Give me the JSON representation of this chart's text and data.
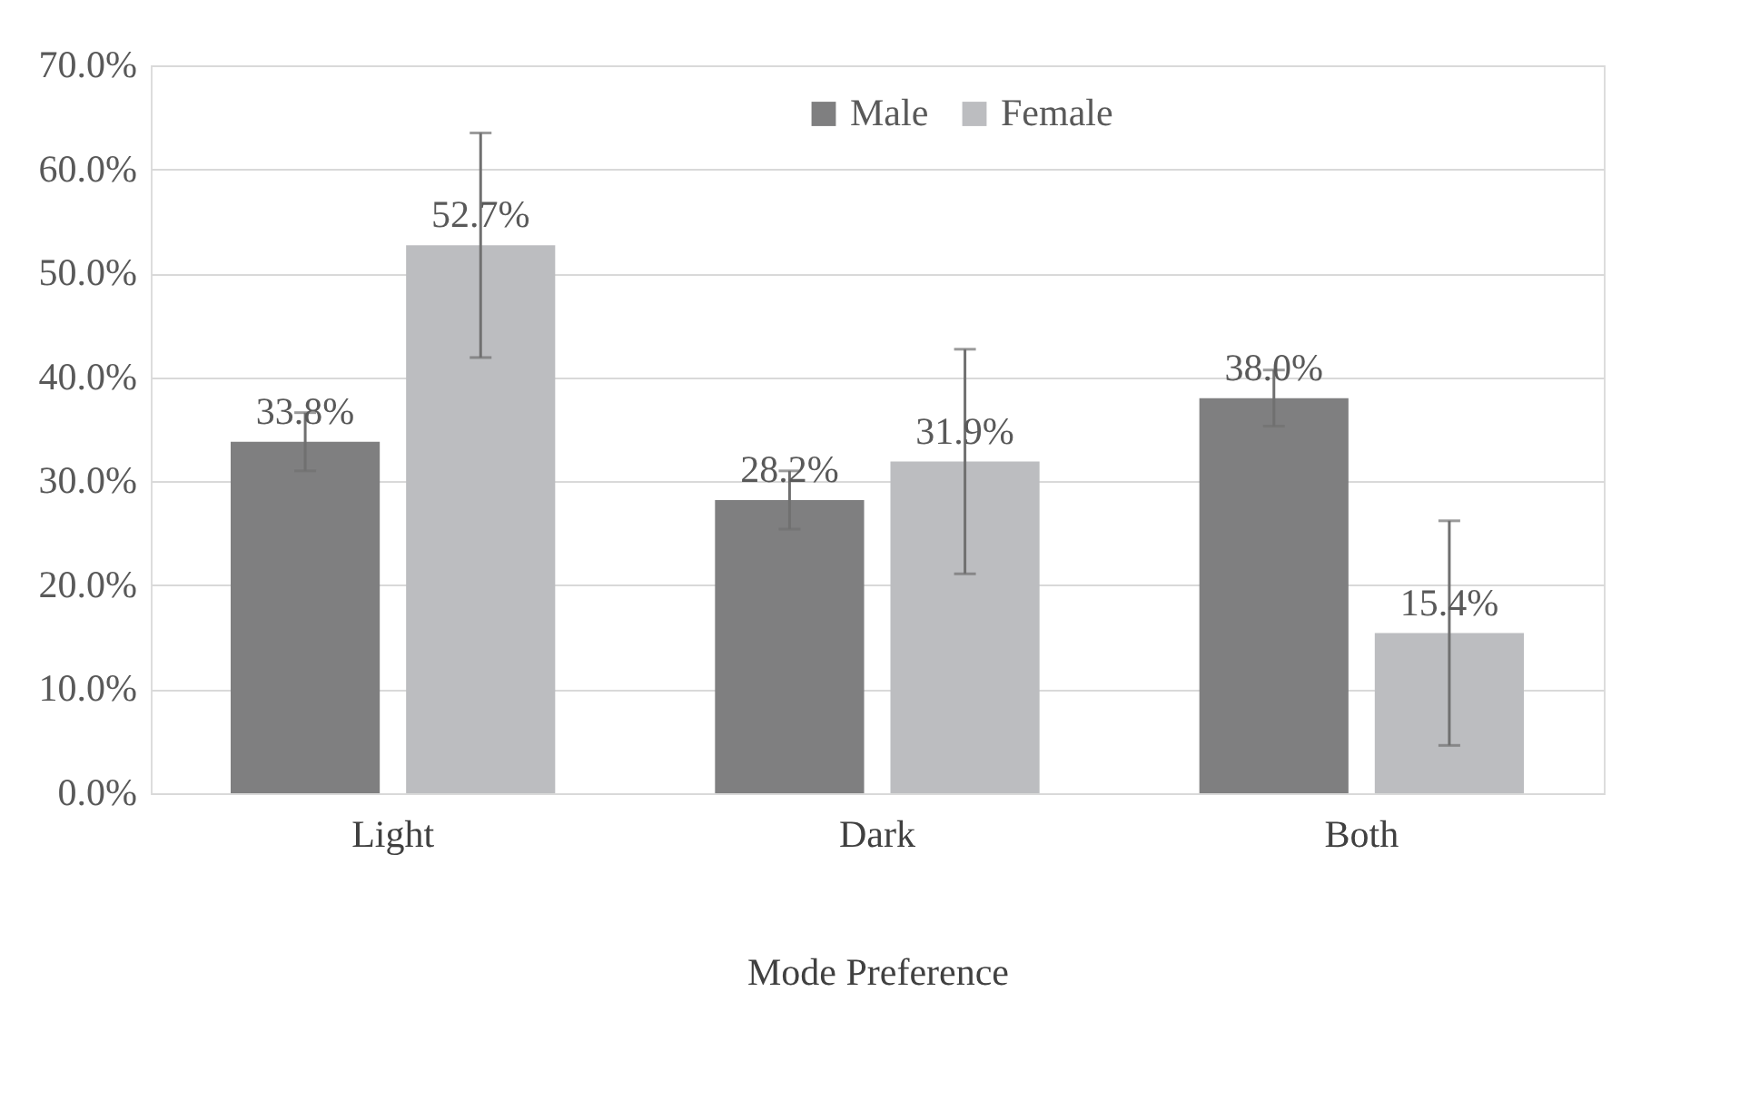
{
  "chart_data": {
    "type": "bar",
    "xlabel": "Mode Preference",
    "categories": [
      "Light",
      "Dark",
      "Both"
    ],
    "series": [
      {
        "name": "Male",
        "color": "#7f7f80",
        "values": [
          33.8,
          28.2,
          38.0
        ],
        "errors": [
          2.8,
          2.8,
          2.7
        ],
        "value_labels": [
          "33.8%",
          "28.2%",
          "38.0%"
        ]
      },
      {
        "name": "Female",
        "color": "#bcbdc0",
        "values": [
          52.7,
          31.9,
          15.4
        ],
        "errors": [
          10.8,
          10.8,
          10.8
        ],
        "value_labels": [
          "52.7%",
          "31.9%",
          "15.4%"
        ]
      }
    ],
    "ylim": [
      0,
      70
    ],
    "yticks": [
      {
        "value": 0,
        "label": "0.0%"
      },
      {
        "value": 10,
        "label": "10.0%"
      },
      {
        "value": 20,
        "label": "20.0%"
      },
      {
        "value": 30,
        "label": "30.0%"
      },
      {
        "value": 40,
        "label": "40.0%"
      },
      {
        "value": 50,
        "label": "50.0%"
      },
      {
        "value": 60,
        "label": "60.0%"
      },
      {
        "value": 70,
        "label": "70.0%"
      }
    ],
    "grid": "y",
    "legend": "top"
  }
}
